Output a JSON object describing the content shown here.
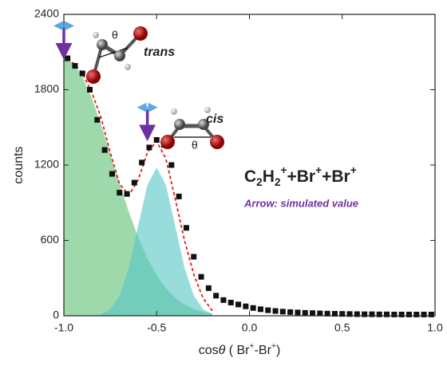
{
  "chart_data": {
    "type": "scatter",
    "xlabel": [
      [
        "cos",
        "normal"
      ],
      [
        "θ",
        "italic"
      ],
      [
        "  ( Br",
        "normal"
      ],
      [
        "+",
        "sup"
      ],
      [
        "-Br",
        "normal"
      ],
      [
        "+",
        "sup"
      ],
      [
        ")",
        "normal"
      ]
    ],
    "ylabel": "counts",
    "xlim": [
      -1.0,
      1.0
    ],
    "ylim": [
      0,
      2400
    ],
    "xticks": [
      {
        "value": -1.0,
        "label": "-1.0"
      },
      {
        "value": -0.5,
        "label": "-0.5"
      },
      {
        "value": 0.0,
        "label": "0.0"
      },
      {
        "value": 0.5,
        "label": "0.5"
      },
      {
        "value": 1.0,
        "label": "1.0"
      }
    ],
    "yticks": [
      0,
      600,
      1200,
      1800,
      2400
    ],
    "series": [
      {
        "style": "points",
        "color": "#111111",
        "x": [
          -0.98,
          -0.94,
          -0.9,
          -0.86,
          -0.82,
          -0.78,
          -0.74,
          -0.7,
          -0.66,
          -0.62,
          -0.58,
          -0.54,
          -0.5,
          -0.46,
          -0.42,
          -0.38,
          -0.34,
          -0.3,
          -0.26,
          -0.22,
          -0.18,
          -0.14,
          -0.1,
          -0.06,
          -0.02,
          0.02,
          0.06,
          0.1,
          0.14,
          0.18,
          0.22,
          0.26,
          0.3,
          0.34,
          0.38,
          0.42,
          0.46,
          0.5,
          0.54,
          0.58,
          0.62,
          0.66,
          0.7,
          0.74,
          0.78,
          0.82,
          0.86,
          0.9,
          0.94,
          0.98
        ],
        "values": [
          2050,
          1990,
          1930,
          1800,
          1560,
          1320,
          1130,
          980,
          970,
          1060,
          1220,
          1340,
          1400,
          1360,
          1200,
          950,
          700,
          470,
          310,
          220,
          160,
          125,
          105,
          90,
          75,
          62,
          52,
          44,
          38,
          33,
          29,
          26,
          23,
          21,
          19,
          17,
          16,
          15,
          14,
          13,
          12,
          12,
          11,
          11,
          10,
          10,
          10,
          10,
          10,
          10
        ]
      },
      {
        "style": "area",
        "color": "#5dbf73",
        "x": [
          -1.0,
          -0.95,
          -0.9,
          -0.85,
          -0.8,
          -0.75,
          -0.7,
          -0.65,
          -0.6,
          -0.55,
          -0.5,
          -0.45,
          -0.4,
          -0.35,
          -0.3,
          -0.25,
          -0.2
        ],
        "values": [
          2050,
          2012,
          1904,
          1735,
          1525,
          1290,
          1052,
          828,
          627,
          457,
          322,
          218,
          142,
          90,
          54,
          32,
          18
        ]
      },
      {
        "style": "area",
        "color": "#55c4c4",
        "x": [
          -0.8,
          -0.75,
          -0.7,
          -0.65,
          -0.6,
          -0.55,
          -0.5,
          -0.45,
          -0.4,
          -0.35,
          -0.3,
          -0.25,
          -0.2
        ],
        "values": [
          13,
          52,
          160,
          383,
          716,
          1041,
          1180,
          1041,
          716,
          383,
          160,
          52,
          13
        ]
      },
      {
        "style": "dashed-line",
        "color": "#e0201b",
        "x": [
          -1.0,
          -0.95,
          -0.9,
          -0.85,
          -0.8,
          -0.75,
          -0.7,
          -0.65,
          -0.6,
          -0.55,
          -0.5,
          -0.45,
          -0.4,
          -0.35,
          -0.3,
          -0.25,
          -0.2
        ],
        "values": [
          2080,
          2010,
          1930,
          1780,
          1580,
          1300,
          1050,
          960,
          1080,
          1300,
          1390,
          1250,
          930,
          600,
          330,
          140,
          40
        ]
      }
    ],
    "arrows": {
      "color": "#7030a0",
      "points": [
        {
          "x": -1.0,
          "y": 2080
        },
        {
          "x": -0.55,
          "y": 1430
        }
      ]
    },
    "annotations": {
      "trans": "trans",
      "cis": "cis",
      "theta": "θ",
      "formula": [
        [
          "C",
          "normal"
        ],
        [
          "2",
          "sub"
        ],
        [
          "H",
          "normal"
        ],
        [
          "2",
          "sub"
        ],
        [
          "+",
          "sup"
        ],
        [
          "+Br",
          "normal"
        ],
        [
          "+",
          "sup"
        ],
        [
          "+Br",
          "normal"
        ],
        [
          "+",
          "sup"
        ]
      ],
      "arrow_note": "Arrow: simulated value"
    }
  }
}
